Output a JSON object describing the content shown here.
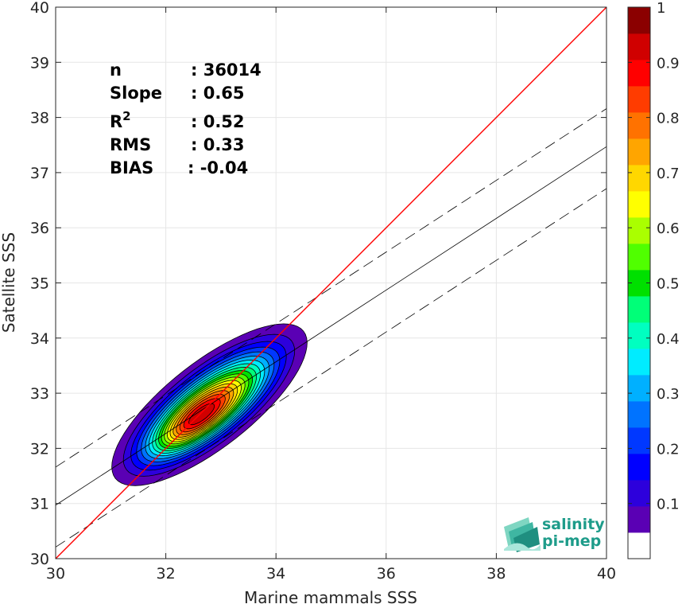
{
  "chart_data": {
    "type": "heatmap",
    "subtype": "density-contour scatter",
    "xlabel": "Marine mammals SSS",
    "ylabel": "Satellite SSS",
    "xlim": [
      30,
      40
    ],
    "ylim": [
      30,
      40
    ],
    "x_ticks": [
      "30",
      "32",
      "34",
      "36",
      "38",
      "40"
    ],
    "y_ticks": [
      "30",
      "31",
      "32",
      "33",
      "34",
      "35",
      "36",
      "37",
      "38",
      "39",
      "40"
    ],
    "grid": true,
    "stats": [
      {
        "label": "n",
        "value": ": 36014"
      },
      {
        "label": "Slope",
        "value": ": 0.65"
      },
      {
        "label": "R",
        "sup": "2",
        "value": ": 0.52"
      },
      {
        "label": "RMS",
        "value": ": 0.33"
      },
      {
        "label": "BIAS",
        "value": ": -0.04"
      }
    ],
    "identity_line": {
      "color": "#ff0000",
      "x": [
        30,
        40
      ],
      "y": [
        30,
        40
      ]
    },
    "regression_line": {
      "x": [
        30,
        40
      ],
      "y": [
        30.97,
        37.47
      ]
    },
    "regression_bounds": {
      "upper": {
        "x": [
          30,
          40
        ],
        "y": [
          31.66,
          38.16
        ]
      },
      "lower": {
        "x": [
          30,
          40
        ],
        "y": [
          30.21,
          36.71
        ]
      }
    },
    "density_peak": {
      "x": 32.65,
      "y": 32.62
    },
    "density_levels": [
      0.05,
      0.1,
      0.15,
      0.2,
      0.25,
      0.3,
      0.35,
      0.4,
      0.45,
      0.5,
      0.55,
      0.6,
      0.65,
      0.7,
      0.75,
      0.8,
      0.85,
      0.9,
      0.95
    ],
    "colorbar": {
      "range": [
        0,
        1
      ],
      "ticks": [
        "0.1",
        "0.2",
        "0.3",
        "0.4",
        "0.5",
        "0.6",
        "0.7",
        "0.8",
        "0.9",
        "1"
      ],
      "colors": [
        "#ffffff",
        "#5a00b4",
        "#2d00dc",
        "#0000ff",
        "#0038ff",
        "#0073ff",
        "#00b0ff",
        "#00ecff",
        "#00ffc0",
        "#00ff78",
        "#00e000",
        "#50ff00",
        "#aaff00",
        "#ffff00",
        "#ffd700",
        "#ffa500",
        "#ff7200",
        "#ff3c00",
        "#ff0000",
        "#d00000",
        "#8b0000"
      ]
    }
  },
  "logo": {
    "line1": "salinity",
    "line2": "pi-mep"
  }
}
